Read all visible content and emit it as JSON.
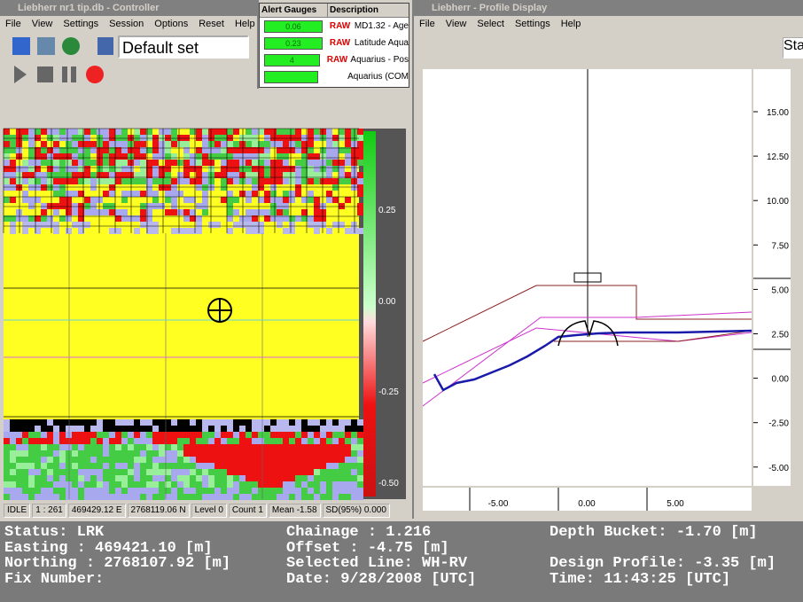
{
  "controller": {
    "title": "Liebherr nr1 tip.db - Controller",
    "menu": [
      "File",
      "View",
      "Settings",
      "Session",
      "Options",
      "Reset",
      "Help"
    ],
    "set": "Default set"
  },
  "alert": {
    "headers": [
      "Alert Gauges",
      "Description"
    ],
    "rows": [
      {
        "gauge": "0.06",
        "tag": "RAW",
        "desc": "MD1.32 - Age"
      },
      {
        "gauge": "0.23",
        "tag": "RAW",
        "desc": "Latitude Aqua"
      },
      {
        "gauge": "4",
        "tag": "RAW",
        "desc": "Aquarius - Pos"
      },
      {
        "desc": "Aquarius (COM"
      }
    ]
  },
  "map": {
    "scale_labels": [
      "0.25",
      "0.00",
      "-0.25",
      "-0.50"
    ],
    "status": [
      "IDLE",
      "1 : 261",
      "469429.12 E",
      "2768119.06 N",
      "Level 0",
      "Count  1",
      "Mean -1.58",
      "SD(95%) 0.000"
    ]
  },
  "profile": {
    "title": "Liebherr - Profile Display",
    "menu": [
      "File",
      "View",
      "Select",
      "Settings",
      "Help"
    ],
    "toolbar_text": "Sta",
    "y_labels": [
      "15.00",
      "12.50",
      "10.00",
      "7.50",
      "5.00",
      "2.50",
      "0.00",
      "-2.50",
      "-5.00"
    ],
    "x_labels": [
      "-5.00",
      "0.00",
      "5.00"
    ]
  },
  "status_panel": {
    "left": [
      "Status: LRK",
      "Easting : 469421.10 [m]",
      "Northing : 2768107.92 [m]",
      "Fix Number:"
    ],
    "middle": [
      "Chainage : 1.216",
      "Offset : -4.75 [m]",
      "Selected Line: WH-RV",
      "Date: 9/28/2008 [UTC]"
    ],
    "right": [
      "Depth Bucket: -1.70 [m]",
      "Design Profile: -3.35 [m]",
      "Time: 11:43:25 [UTC]"
    ]
  }
}
